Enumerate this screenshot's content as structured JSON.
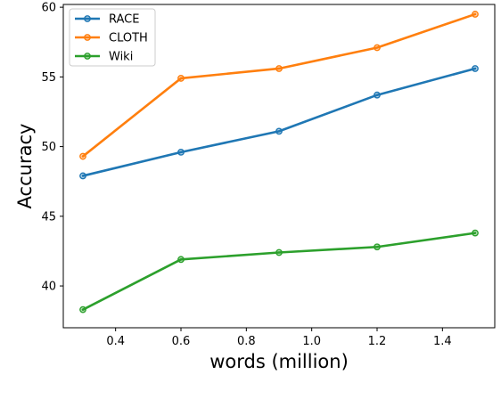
{
  "chart_data": {
    "type": "line",
    "title": "",
    "xlabel": "words (million)",
    "ylabel": "Accuracy",
    "x": [
      0.3,
      0.6,
      0.9,
      1.2,
      1.5
    ],
    "xlim": [
      0.24,
      1.56
    ],
    "ylim": [
      37.0,
      60.2
    ],
    "xticks": [
      0.4,
      0.6,
      0.8,
      1.0,
      1.2,
      1.4
    ],
    "xtick_labels": [
      "0.4",
      "0.6",
      "0.8",
      "1.0",
      "1.2",
      "1.4"
    ],
    "yticks": [
      40,
      45,
      50,
      55,
      60
    ],
    "ytick_labels": [
      "40",
      "45",
      "50",
      "55",
      "60"
    ],
    "grid": false,
    "legend_position": "top-left",
    "series": [
      {
        "name": "RACE",
        "color": "#1f77b4",
        "values": [
          47.9,
          49.6,
          51.1,
          53.7,
          55.6
        ]
      },
      {
        "name": "CLOTH",
        "color": "#ff7f0e",
        "values": [
          49.3,
          54.9,
          55.6,
          57.1,
          59.5
        ]
      },
      {
        "name": "Wiki",
        "color": "#2ca02c",
        "values": [
          38.3,
          41.9,
          42.4,
          42.8,
          43.8
        ]
      }
    ]
  }
}
